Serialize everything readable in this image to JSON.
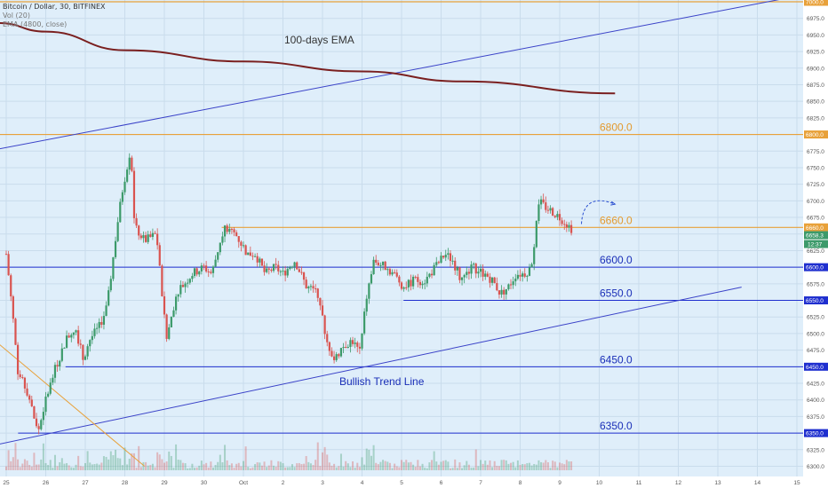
{
  "header": {
    "symbol": "Bitcoin / Dollar, 30, BITFINEX",
    "vol": "Vol (20)",
    "ema": "EMA (4800, close)"
  },
  "colors": {
    "background": "#dfeefa",
    "grid": "#c9dcec",
    "up": "#3c9a6a",
    "down": "#d9534f",
    "level_orange": "#e8a13a",
    "level_blue": "#1f2fcf",
    "ema": "#7a1f1f",
    "trend": "#3a42c8",
    "downtrend": "#e8a13a"
  },
  "chart_data": {
    "type": "candlestick",
    "ylim": [
      6295,
      7005
    ],
    "y_ticks": [
      "6300.0",
      "6325.0",
      "6350.0",
      "6375.0",
      "6400.0",
      "6425.0",
      "6450.0",
      "6475.0",
      "6500.0",
      "6525.0",
      "6550.0",
      "6575.0",
      "6600.0",
      "6625.0",
      "6650.0",
      "6675.0",
      "6700.0",
      "6725.0",
      "6750.0",
      "6775.0",
      "6800.0",
      "6825.0",
      "6850.0",
      "6875.0",
      "6900.0",
      "6925.0",
      "6950.0",
      "6975.0",
      "7000.0"
    ],
    "x_ticks": [
      {
        "label": "25",
        "day": 0
      },
      {
        "label": "26",
        "day": 1
      },
      {
        "label": "27",
        "day": 2
      },
      {
        "label": "28",
        "day": 3
      },
      {
        "label": "29",
        "day": 4
      },
      {
        "label": "30",
        "day": 5
      },
      {
        "label": "Oct",
        "day": 6
      },
      {
        "label": "2",
        "day": 7
      },
      {
        "label": "3",
        "day": 8
      },
      {
        "label": "4",
        "day": 9
      },
      {
        "label": "5",
        "day": 10
      },
      {
        "label": "6",
        "day": 11
      },
      {
        "label": "7",
        "day": 12
      },
      {
        "label": "8",
        "day": 13
      },
      {
        "label": "9",
        "day": 14
      },
      {
        "label": "10",
        "day": 15
      },
      {
        "label": "11",
        "day": 16
      },
      {
        "label": "12",
        "day": 17
      },
      {
        "label": "13",
        "day": 18
      },
      {
        "label": "14",
        "day": 19
      },
      {
        "label": "15",
        "day": 20
      }
    ],
    "price_path": [
      [
        0.0,
        6620
      ],
      [
        0.15,
        6540
      ],
      [
        0.3,
        6440
      ],
      [
        0.55,
        6410
      ],
      [
        0.8,
        6350
      ],
      [
        1.0,
        6400
      ],
      [
        1.2,
        6440
      ],
      [
        1.5,
        6490
      ],
      [
        1.75,
        6510
      ],
      [
        1.95,
        6460
      ],
      [
        2.1,
        6490
      ],
      [
        2.35,
        6510
      ],
      [
        2.55,
        6540
      ],
      [
        2.8,
        6660
      ],
      [
        2.95,
        6720
      ],
      [
        3.15,
        6780
      ],
      [
        3.25,
        6660
      ],
      [
        3.5,
        6640
      ],
      [
        3.8,
        6650
      ],
      [
        4.05,
        6490
      ],
      [
        4.3,
        6560
      ],
      [
        4.7,
        6590
      ],
      [
        5.0,
        6600
      ],
      [
        5.2,
        6590
      ],
      [
        5.5,
        6660
      ],
      [
        5.8,
        6650
      ],
      [
        6.1,
        6620
      ],
      [
        6.3,
        6620
      ],
      [
        6.55,
        6590
      ],
      [
        6.8,
        6600
      ],
      [
        7.0,
        6590
      ],
      [
        7.3,
        6610
      ],
      [
        7.6,
        6570
      ],
      [
        7.9,
        6560
      ],
      [
        8.1,
        6490
      ],
      [
        8.3,
        6460
      ],
      [
        8.5,
        6480
      ],
      [
        8.75,
        6490
      ],
      [
        8.95,
        6470
      ],
      [
        9.1,
        6550
      ],
      [
        9.3,
        6610
      ],
      [
        9.6,
        6600
      ],
      [
        9.8,
        6590
      ],
      [
        10.05,
        6570
      ],
      [
        10.3,
        6580
      ],
      [
        10.6,
        6580
      ],
      [
        10.85,
        6600
      ],
      [
        11.1,
        6620
      ],
      [
        11.3,
        6610
      ],
      [
        11.5,
        6580
      ],
      [
        11.8,
        6600
      ],
      [
        12.1,
        6590
      ],
      [
        12.3,
        6580
      ],
      [
        12.5,
        6560
      ],
      [
        12.7,
        6570
      ],
      [
        12.9,
        6590
      ],
      [
        13.1,
        6590
      ],
      [
        13.3,
        6600
      ],
      [
        13.45,
        6700
      ],
      [
        13.65,
        6690
      ],
      [
        13.9,
        6680
      ],
      [
        14.1,
        6670
      ],
      [
        14.3,
        6658
      ]
    ],
    "ema": {
      "label": "100-days EMA",
      "points": [
        [
          -0.2,
          6968
        ],
        [
          1.0,
          6955
        ],
        [
          3.0,
          6927
        ],
        [
          6.0,
          6910
        ],
        [
          9.0,
          6895
        ],
        [
          11.5,
          6880
        ],
        [
          15.4,
          6862
        ]
      ]
    },
    "levels": [
      {
        "value": 6800,
        "label": "6800.0",
        "color": "orange",
        "from_day": -0.2
      },
      {
        "value": 6660,
        "label": "6660.0",
        "color": "orange",
        "from_day": 5.45
      },
      {
        "value": 6600,
        "label": "6600.0",
        "color": "blue",
        "from_day": -0.2
      },
      {
        "value": 6550,
        "label": "6550.0",
        "color": "blue",
        "from_day": 10.05
      },
      {
        "value": 6450,
        "label": "6450.0",
        "color": "blue",
        "from_day": 1.5
      },
      {
        "value": 6350,
        "label": "6350.0",
        "color": "blue",
        "from_day": 0.3
      }
    ],
    "top_level": {
      "value": 7000,
      "label": "7000.0"
    },
    "trend_lines": [
      {
        "name": "Bullish Trend Line",
        "from": [
          -0.2,
          6333
        ],
        "to": [
          18.6,
          6570
        ]
      },
      {
        "from": [
          -0.2,
          6778
        ],
        "to": [
          20.4,
          7013
        ]
      },
      {
        "from": [
          -0.2,
          6485
        ],
        "to": [
          3.5,
          6300
        ]
      }
    ],
    "projection": {
      "from": [
        14.55,
        6665
      ],
      "to": [
        15.4,
        6695
      ]
    },
    "last_price": {
      "value": 6658.3,
      "label": "6658.3",
      "countdown": "12:37"
    },
    "annotations": {
      "ema_label": "100-days EMA",
      "trend_label": "Bullish Trend Line"
    }
  }
}
